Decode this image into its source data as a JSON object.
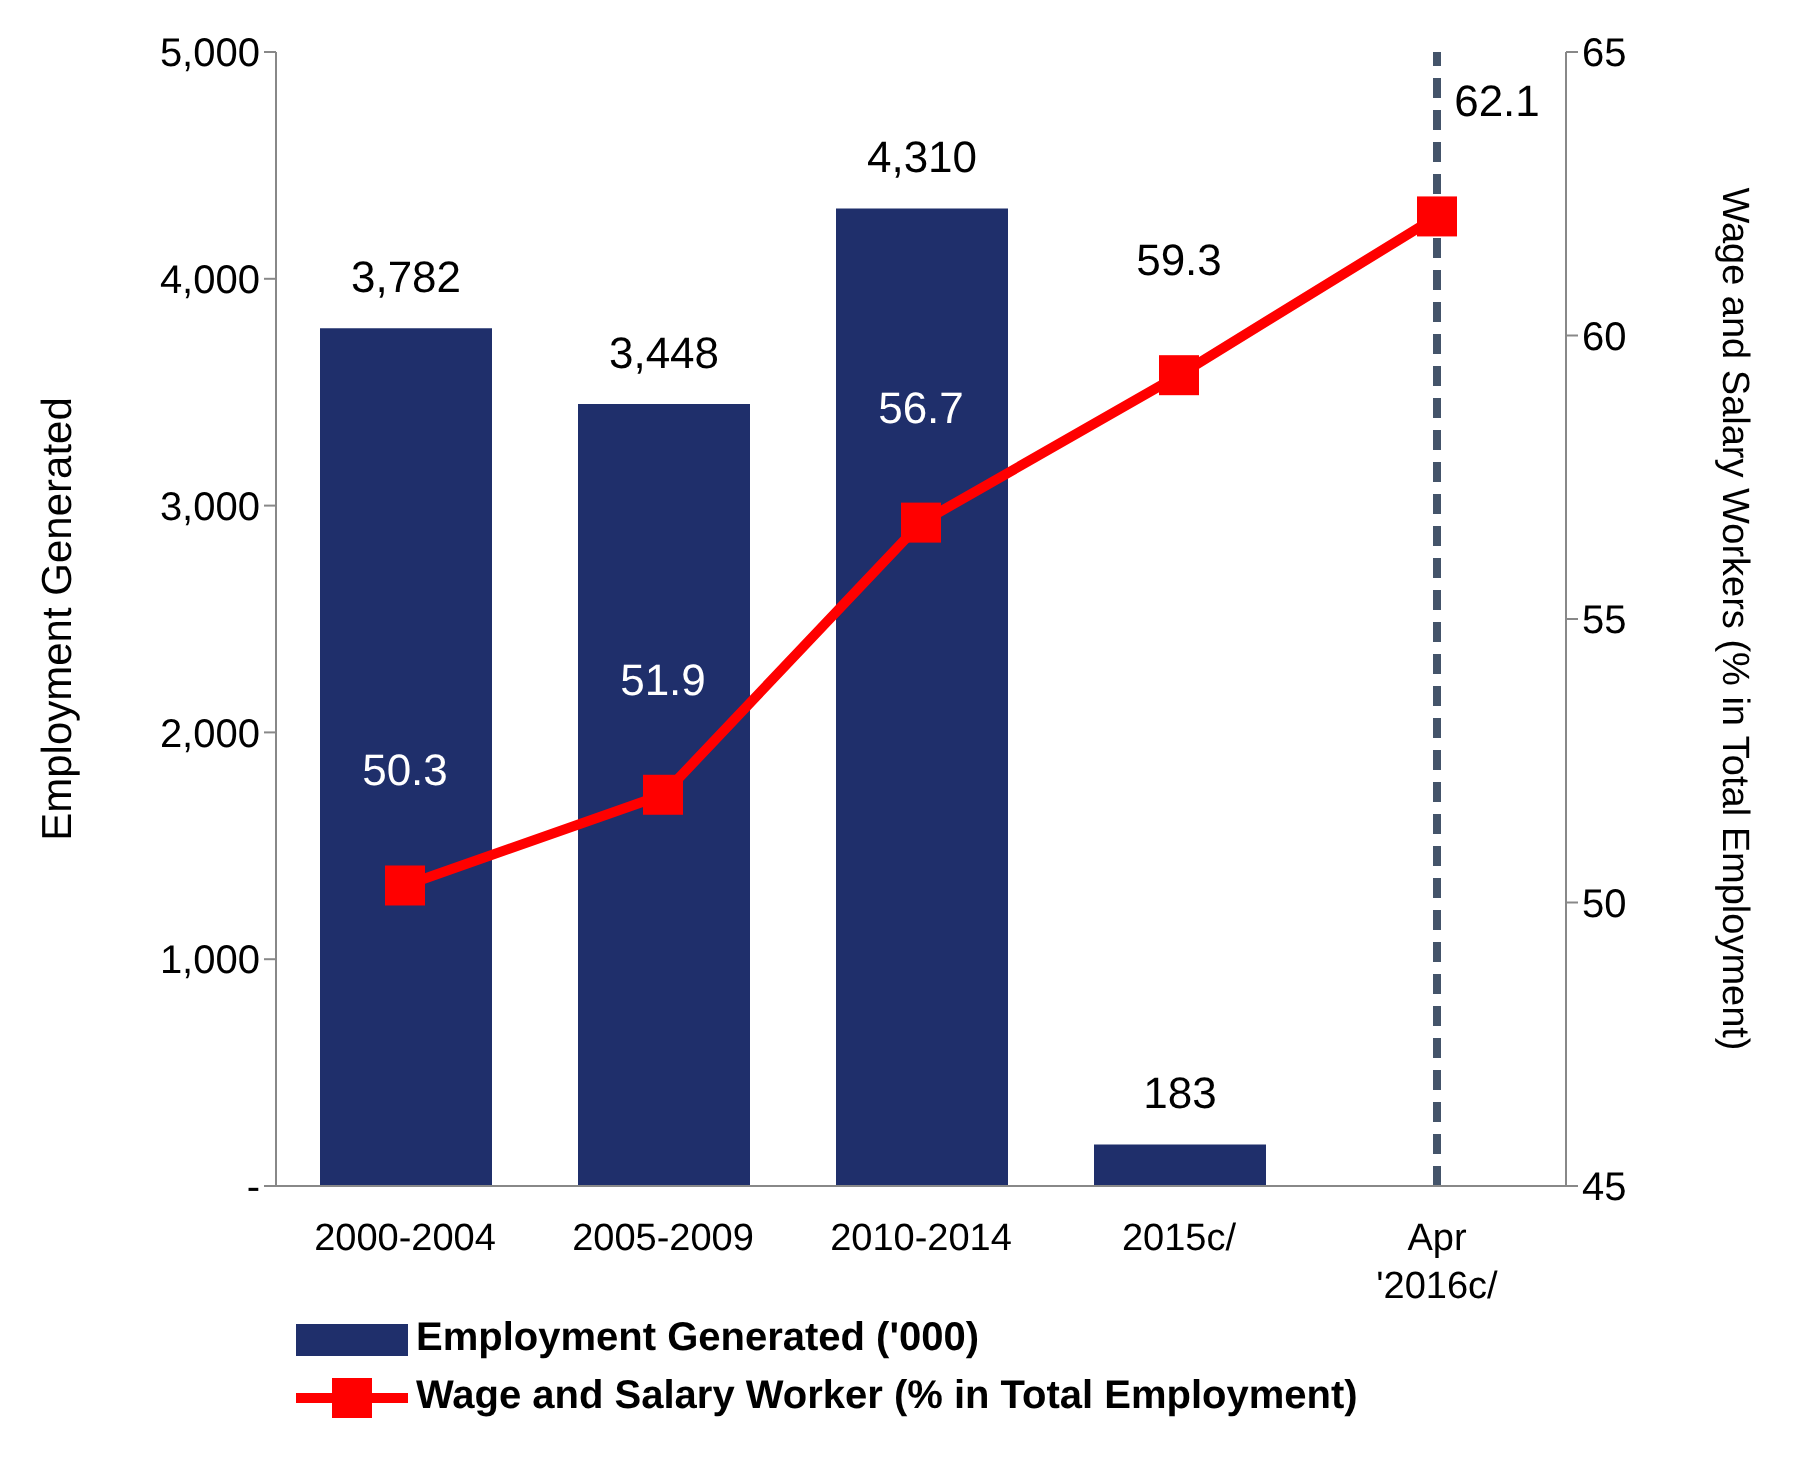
{
  "chart_data": {
    "type": "bar",
    "categories": [
      "2000-2004",
      "2005-2009",
      "2010-2014",
      "2015c/",
      "Apr '2016c/"
    ],
    "ylabel": "Employment Generated",
    "y2label": "Wage and Salary Workers (% in Total Employment)",
    "series": [
      {
        "name": "Employment Generated ('000)",
        "color": "#1f2f6b",
        "values": [
          3782,
          3448,
          4310,
          183,
          null
        ],
        "value_labels": [
          "3,782",
          "3,448",
          "4,310",
          "183",
          null
        ]
      },
      {
        "name": "Wage and Salary Worker (% in Total Employment)",
        "type": "line",
        "axis": "y2",
        "color": "#ff0000",
        "marker": "square",
        "values": [
          50.3,
          51.9,
          56.7,
          59.3,
          62.1
        ],
        "value_labels": [
          "50.3",
          "51.9",
          "56.7",
          "59.3",
          "62.1"
        ]
      }
    ],
    "ylim": [
      0,
      5000
    ],
    "yticks": [
      {
        "value": 0,
        "label": "-"
      },
      {
        "value": 1000,
        "label": "1,000"
      },
      {
        "value": 2000,
        "label": "2,000"
      },
      {
        "value": 3000,
        "label": "3,000"
      },
      {
        "value": 4000,
        "label": "4,000"
      },
      {
        "value": 5000,
        "label": "5,000"
      }
    ],
    "y2lim": [
      45,
      65
    ],
    "y2ticks": [
      45,
      50,
      55,
      60,
      65
    ],
    "ref_lines": [
      {
        "axis": "x",
        "value": "Apr '2016c/",
        "color": "#44546a",
        "line_style": "dashed"
      }
    ],
    "grid": false,
    "legend": "bottom"
  }
}
